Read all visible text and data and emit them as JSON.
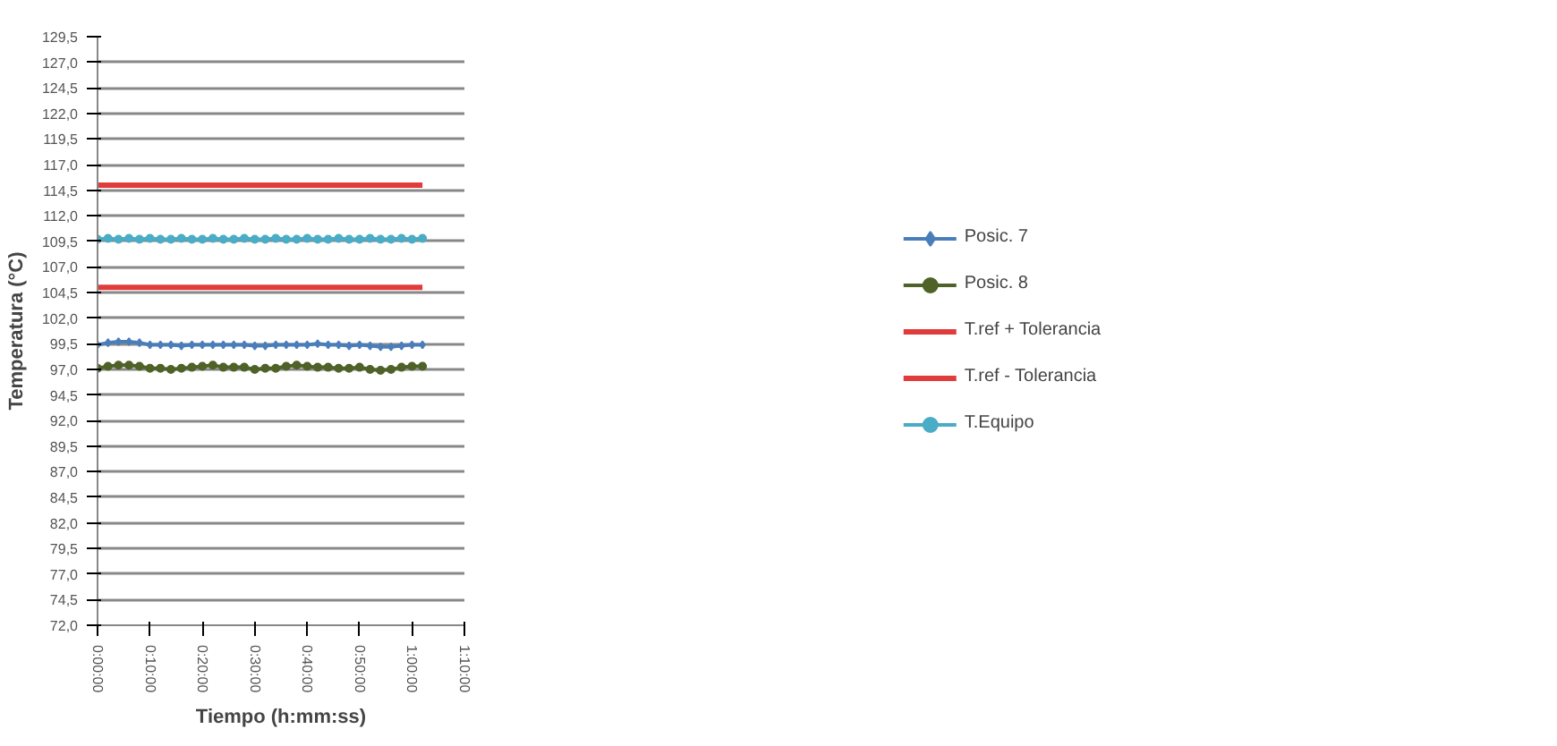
{
  "chart_data": {
    "type": "line",
    "xlabel": "Tiempo (h:mm:ss)",
    "ylabel": "Temperatura (°C)",
    "x": [
      0,
      0.0333,
      0.0667,
      0.1,
      0.1333,
      0.1667,
      0.2,
      0.2333,
      0.2667,
      0.3,
      0.3333,
      0.3667,
      0.4,
      0.4333,
      0.4667,
      0.5,
      0.5333,
      0.5667,
      0.6,
      0.6333,
      0.6667,
      0.7,
      0.7333,
      0.7667,
      0.8,
      0.8333,
      0.8667,
      0.9,
      0.9333,
      0.9667,
      1.0,
      1.0333
    ],
    "series": [
      {
        "name": "Posic. 7",
        "color": "#4a7ebb",
        "marker": "diamond",
        "values": [
          99.4,
          99.6,
          99.7,
          99.7,
          99.6,
          99.4,
          99.4,
          99.4,
          99.3,
          99.4,
          99.4,
          99.4,
          99.4,
          99.4,
          99.4,
          99.3,
          99.3,
          99.4,
          99.4,
          99.4,
          99.4,
          99.5,
          99.4,
          99.4,
          99.3,
          99.4,
          99.3,
          99.2,
          99.2,
          99.3,
          99.4,
          99.4
        ]
      },
      {
        "name": "Posic. 8",
        "color": "#4f6228",
        "marker": "circle",
        "values": [
          97.1,
          97.3,
          97.4,
          97.4,
          97.3,
          97.1,
          97.1,
          97.0,
          97.1,
          97.2,
          97.3,
          97.4,
          97.2,
          97.2,
          97.2,
          97.0,
          97.1,
          97.1,
          97.3,
          97.4,
          97.3,
          97.2,
          97.2,
          97.1,
          97.1,
          97.2,
          97.0,
          96.9,
          97.0,
          97.2,
          97.3,
          97.3
        ]
      },
      {
        "name": "T.ref + Tolerancia",
        "color": "#e03c3c",
        "marker": "none",
        "values": [
          115,
          115,
          115,
          115,
          115,
          115,
          115,
          115,
          115,
          115,
          115,
          115,
          115,
          115,
          115,
          115,
          115,
          115,
          115,
          115,
          115,
          115,
          115,
          115,
          115,
          115,
          115,
          115,
          115,
          115,
          115,
          115
        ]
      },
      {
        "name": "T.ref - Tolerancia",
        "color": "#e03c3c",
        "marker": "none",
        "values": [
          105,
          105,
          105,
          105,
          105,
          105,
          105,
          105,
          105,
          105,
          105,
          105,
          105,
          105,
          105,
          105,
          105,
          105,
          105,
          105,
          105,
          105,
          105,
          105,
          105,
          105,
          105,
          105,
          105,
          105,
          105,
          105
        ]
      },
      {
        "name": "T.Equipo",
        "color": "#4bacc6",
        "marker": "circle",
        "values": [
          109.7,
          109.8,
          109.7,
          109.8,
          109.7,
          109.8,
          109.7,
          109.7,
          109.8,
          109.7,
          109.7,
          109.8,
          109.7,
          109.7,
          109.8,
          109.7,
          109.7,
          109.8,
          109.7,
          109.7,
          109.8,
          109.7,
          109.7,
          109.8,
          109.7,
          109.7,
          109.8,
          109.7,
          109.7,
          109.8,
          109.7,
          109.8
        ]
      }
    ],
    "xlim": [
      0,
      1.1667
    ],
    "xticks": [
      {
        "value": 0,
        "label": "0:00:00"
      },
      {
        "value": 0.1667,
        "label": "0:10:00"
      },
      {
        "value": 0.3333,
        "label": "0:20:00"
      },
      {
        "value": 0.5,
        "label": "0:30:00"
      },
      {
        "value": 0.6667,
        "label": "0:40:00"
      },
      {
        "value": 0.8333,
        "label": "0:50:00"
      },
      {
        "value": 1.0,
        "label": "1:00:00"
      },
      {
        "value": 1.1667,
        "label": "1:10:00"
      }
    ],
    "ylim": [
      72,
      129.5
    ],
    "yticks": [
      {
        "value": 72,
        "label": "72,0"
      },
      {
        "value": 74.5,
        "label": "74,5"
      },
      {
        "value": 77,
        "label": "77,0"
      },
      {
        "value": 79.5,
        "label": "79,5"
      },
      {
        "value": 82,
        "label": "82,0"
      },
      {
        "value": 84.5,
        "label": "84,5"
      },
      {
        "value": 87,
        "label": "87,0"
      },
      {
        "value": 89.5,
        "label": "89,5"
      },
      {
        "value": 92,
        "label": "92,0"
      },
      {
        "value": 94.5,
        "label": "94,5"
      },
      {
        "value": 97,
        "label": "97,0"
      },
      {
        "value": 99.5,
        "label": "99,5"
      },
      {
        "value": 102,
        "label": "102,0"
      },
      {
        "value": 104.5,
        "label": "104,5"
      },
      {
        "value": 107,
        "label": "107,0"
      },
      {
        "value": 109.5,
        "label": "109,5"
      },
      {
        "value": 112,
        "label": "112,0"
      },
      {
        "value": 114.5,
        "label": "114,5"
      },
      {
        "value": 117,
        "label": "117,0"
      },
      {
        "value": 119.5,
        "label": "119,5"
      },
      {
        "value": 122,
        "label": "122,0"
      },
      {
        "value": 124.5,
        "label": "124,5"
      },
      {
        "value": 127,
        "label": "127,0"
      },
      {
        "value": 129.5,
        "label": "129,5"
      }
    ],
    "grid": "y",
    "legend": "right",
    "line_style": "solid"
  }
}
